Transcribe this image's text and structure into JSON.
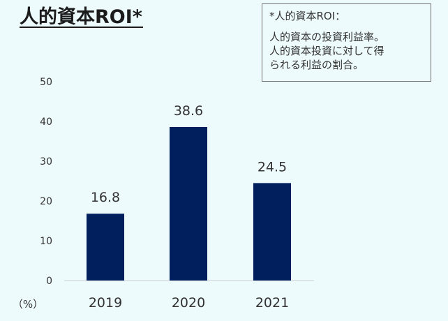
{
  "title": "人的資本ROI*",
  "note": {
    "heading": "*人的資本ROI：",
    "lines": [
      "人的資本の投資利益率。",
      "人的資本投資に対して得",
      "られる利益の割合。"
    ]
  },
  "chart_data": {
    "type": "bar",
    "categories": [
      "2019",
      "2020",
      "2021"
    ],
    "values": [
      16.8,
      38.6,
      24.5
    ],
    "value_labels": [
      "16.8",
      "38.6",
      "24.5"
    ],
    "ylim": [
      0,
      50
    ],
    "yticks": [
      "0",
      "10",
      "20",
      "30",
      "40",
      "50"
    ],
    "unit_label": "（%）",
    "bar_color": "#001f5c",
    "grid": false
  }
}
